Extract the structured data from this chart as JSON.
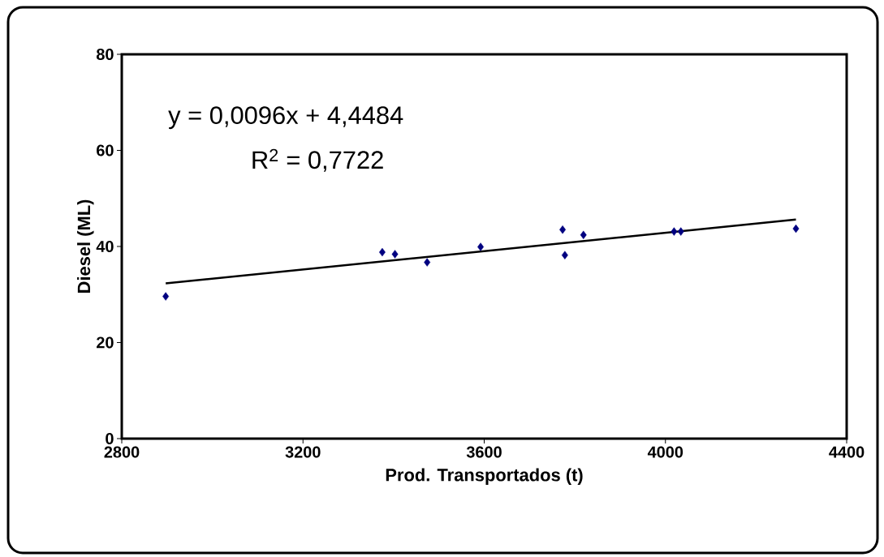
{
  "chart_data": {
    "type": "scatter",
    "xlabel": "Prod. Transportados (t)",
    "ylabel": "Diesel (ML)",
    "annotations": [
      "y = 0,0096x + 4,4484",
      "R$^{2}$ = 0,7722"
    ],
    "series": [
      {
        "color": "#000080",
        "marker": "diamond",
        "x": [
          2897,
          3375,
          3403,
          3474,
          3592,
          3773,
          3778,
          3819,
          4019,
          4034,
          4288
        ],
        "values": [
          29.6,
          38.8,
          38.4,
          36.7,
          39.9,
          43.5,
          38.2,
          42.4,
          43.1,
          43.1,
          43.7
        ]
      },
      {
        "type": "line",
        "color": "#000000",
        "marker": "none",
        "x": [
          2897,
          4288
        ],
        "values": [
          32.3,
          45.6
        ]
      }
    ],
    "xlim": [
      2800,
      4400
    ],
    "xticks": [
      2800,
      3200,
      3600,
      4000,
      4400
    ],
    "ylim": [
      0,
      80
    ],
    "yticks": [
      0,
      20,
      40,
      60,
      80
    ],
    "grid": false
  }
}
